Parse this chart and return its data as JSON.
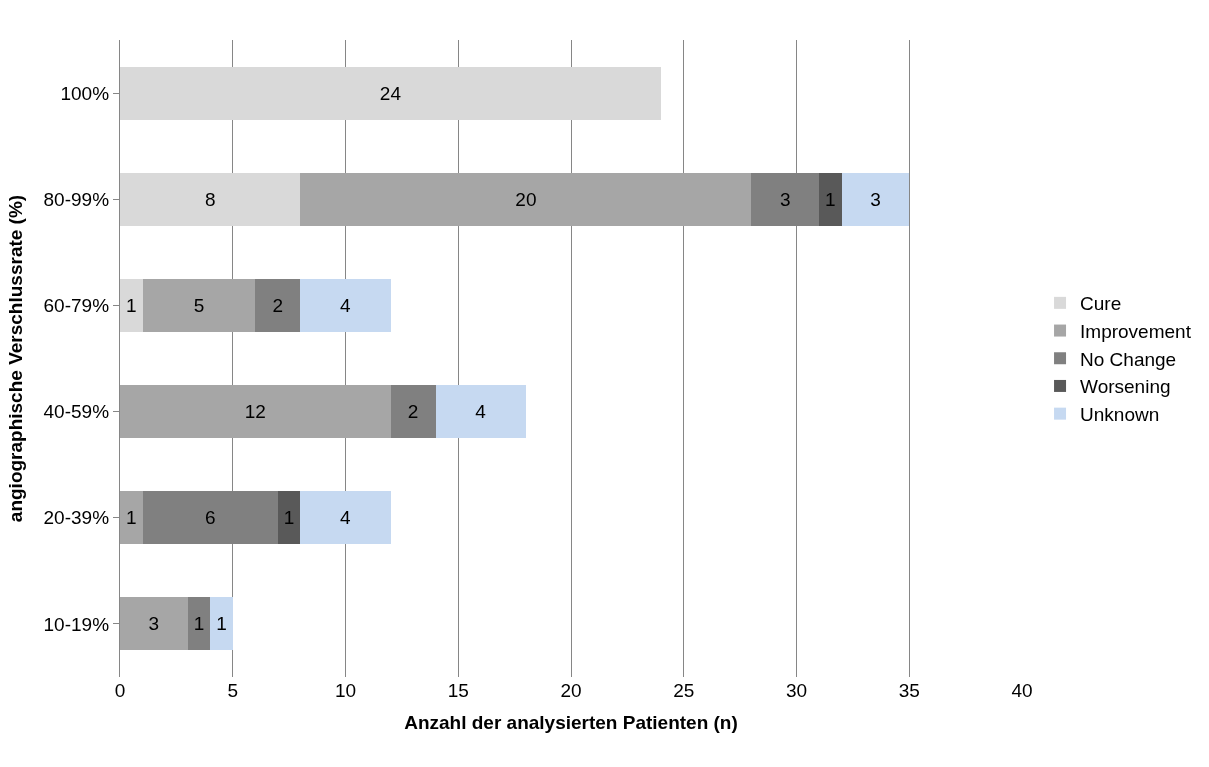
{
  "chart_data": {
    "type": "bar",
    "orientation": "horizontal",
    "stacked": true,
    "xlabel": "Anzahl der analysierten Patienten (n)",
    "ylabel": "angiographische Verschlussrate (%)",
    "categories": [
      "100%",
      "80-99%",
      "60-79%",
      "40-59%",
      "20-39%",
      "10-19%"
    ],
    "series": [
      {
        "name": "Cure",
        "color": "#d9d9d9",
        "values": [
          24,
          8,
          1,
          null,
          null,
          null
        ]
      },
      {
        "name": "Improvement",
        "color": "#a6a6a6",
        "values": [
          null,
          20,
          5,
          12,
          1,
          3
        ]
      },
      {
        "name": "No Change",
        "color": "#808080",
        "values": [
          null,
          3,
          2,
          2,
          6,
          1
        ]
      },
      {
        "name": "Worsening",
        "color": "#595959",
        "values": [
          null,
          1,
          null,
          null,
          1,
          null
        ]
      },
      {
        "name": "Unknown",
        "color": "#c6d9f1",
        "values": [
          null,
          3,
          4,
          4,
          4,
          1
        ]
      }
    ],
    "xlim": [
      0,
      40
    ],
    "xticks": [
      0,
      5,
      10,
      15,
      20,
      25,
      30,
      35,
      40
    ],
    "grid": "x",
    "legend": "right",
    "data_labels": true
  }
}
